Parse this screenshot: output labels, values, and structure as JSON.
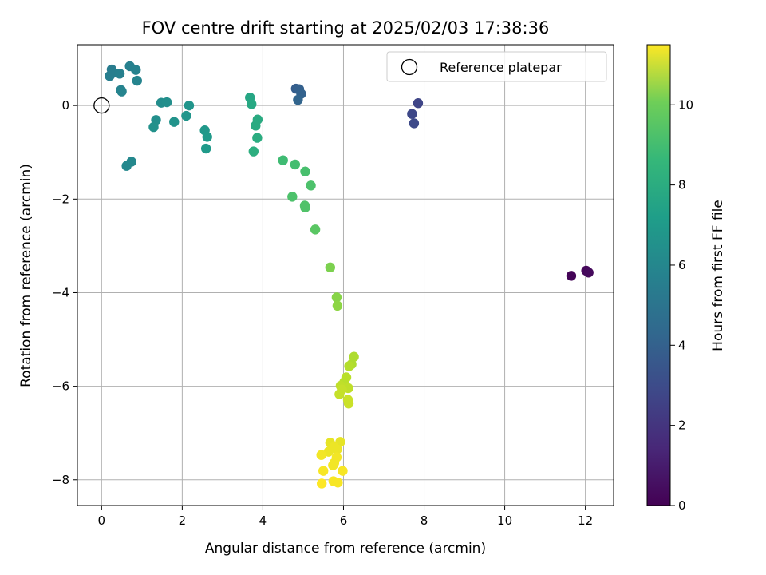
{
  "chart_data": {
    "type": "scatter",
    "title": "FOV centre drift starting at 2025/02/03 17:38:36",
    "xlabel": "Angular distance from reference (arcmin)",
    "ylabel": "Rotation from reference (arcmin)",
    "xlim": [
      -0.6,
      12.7
    ],
    "ylim": [
      -8.55,
      1.3
    ],
    "xticks": [
      0,
      2,
      4,
      6,
      8,
      10,
      12
    ],
    "yticks": [
      -8,
      -6,
      -4,
      -2,
      0
    ],
    "grid": true,
    "legend": {
      "position": "top-right",
      "entries": [
        "Reference platepar"
      ]
    },
    "reference_point": {
      "x": 0,
      "y": 0,
      "label": "Reference platepar"
    },
    "colorbar": {
      "label": "Hours from first FF file",
      "colormap": "viridis",
      "range": [
        0,
        11.5
      ],
      "ticks": [
        0,
        2,
        4,
        6,
        8,
        10
      ]
    },
    "points": [
      {
        "x": 11.65,
        "y": -3.64,
        "c": 0.1
      },
      {
        "x": 12.02,
        "y": -3.53,
        "c": 0.2
      },
      {
        "x": 12.08,
        "y": -3.57,
        "c": 0.3
      },
      {
        "x": 7.85,
        "y": 0.05,
        "c": 2.4
      },
      {
        "x": 7.7,
        "y": -0.18,
        "c": 2.5
      },
      {
        "x": 7.75,
        "y": -0.38,
        "c": 2.6
      },
      {
        "x": 4.82,
        "y": 0.36,
        "c": 3.4
      },
      {
        "x": 4.9,
        "y": 0.35,
        "c": 3.5
      },
      {
        "x": 4.95,
        "y": 0.25,
        "c": 3.6
      },
      {
        "x": 4.87,
        "y": 0.12,
        "c": 3.7
      },
      {
        "x": 0.25,
        "y": 0.77,
        "c": 4.8
      },
      {
        "x": 0.3,
        "y": 0.7,
        "c": 4.9
      },
      {
        "x": 0.2,
        "y": 0.63,
        "c": 4.9
      },
      {
        "x": 0.45,
        "y": 0.68,
        "c": 5.0
      },
      {
        "x": 0.7,
        "y": 0.84,
        "c": 5.0
      },
      {
        "x": 0.85,
        "y": 0.76,
        "c": 5.1
      },
      {
        "x": 0.48,
        "y": 0.33,
        "c": 5.1
      },
      {
        "x": 0.5,
        "y": 0.3,
        "c": 5.2
      },
      {
        "x": 0.88,
        "y": 0.53,
        "c": 5.2
      },
      {
        "x": 0.62,
        "y": -1.29,
        "c": 5.4
      },
      {
        "x": 0.74,
        "y": -1.2,
        "c": 5.4
      },
      {
        "x": 1.48,
        "y": 0.06,
        "c": 5.6
      },
      {
        "x": 1.62,
        "y": 0.07,
        "c": 5.7
      },
      {
        "x": 1.35,
        "y": -0.31,
        "c": 5.7
      },
      {
        "x": 1.29,
        "y": -0.46,
        "c": 5.8
      },
      {
        "x": 1.8,
        "y": -0.35,
        "c": 5.9
      },
      {
        "x": 2.17,
        "y": 0.0,
        "c": 6.0
      },
      {
        "x": 2.1,
        "y": -0.22,
        "c": 6.0
      },
      {
        "x": 2.56,
        "y": -0.53,
        "c": 6.1
      },
      {
        "x": 2.62,
        "y": -0.67,
        "c": 6.2
      },
      {
        "x": 2.59,
        "y": -0.92,
        "c": 6.2
      },
      {
        "x": 3.68,
        "y": 0.17,
        "c": 6.8
      },
      {
        "x": 3.72,
        "y": 0.03,
        "c": 6.9
      },
      {
        "x": 3.87,
        "y": -0.3,
        "c": 7.0
      },
      {
        "x": 3.82,
        "y": -0.43,
        "c": 7.0
      },
      {
        "x": 3.86,
        "y": -0.69,
        "c": 7.1
      },
      {
        "x": 3.77,
        "y": -0.98,
        "c": 7.2
      },
      {
        "x": 4.5,
        "y": -1.17,
        "c": 7.9
      },
      {
        "x": 4.8,
        "y": -1.26,
        "c": 8.0
      },
      {
        "x": 5.05,
        "y": -1.41,
        "c": 8.1
      },
      {
        "x": 5.19,
        "y": -1.71,
        "c": 8.2
      },
      {
        "x": 4.73,
        "y": -1.95,
        "c": 8.2
      },
      {
        "x": 5.04,
        "y": -2.14,
        "c": 8.3
      },
      {
        "x": 5.05,
        "y": -2.18,
        "c": 8.3
      },
      {
        "x": 5.3,
        "y": -2.65,
        "c": 8.5
      },
      {
        "x": 5.67,
        "y": -3.46,
        "c": 9.2
      },
      {
        "x": 5.83,
        "y": -4.1,
        "c": 9.4
      },
      {
        "x": 5.85,
        "y": -4.28,
        "c": 9.5
      },
      {
        "x": 6.26,
        "y": -5.37,
        "c": 10.1
      },
      {
        "x": 6.2,
        "y": -5.53,
        "c": 10.1
      },
      {
        "x": 6.14,
        "y": -5.57,
        "c": 10.2
      },
      {
        "x": 6.07,
        "y": -5.81,
        "c": 10.3
      },
      {
        "x": 6.02,
        "y": -5.91,
        "c": 10.3
      },
      {
        "x": 5.93,
        "y": -5.99,
        "c": 10.4
      },
      {
        "x": 6.12,
        "y": -6.04,
        "c": 10.4
      },
      {
        "x": 5.96,
        "y": -6.07,
        "c": 10.5
      },
      {
        "x": 5.9,
        "y": -6.17,
        "c": 10.5
      },
      {
        "x": 6.11,
        "y": -6.29,
        "c": 10.6
      },
      {
        "x": 6.13,
        "y": -6.37,
        "c": 10.6
      },
      {
        "x": 5.67,
        "y": -7.21,
        "c": 11.1
      },
      {
        "x": 5.92,
        "y": -7.19,
        "c": 11.1
      },
      {
        "x": 5.76,
        "y": -7.3,
        "c": 11.2
      },
      {
        "x": 5.84,
        "y": -7.35,
        "c": 11.2
      },
      {
        "x": 5.63,
        "y": -7.4,
        "c": 11.2
      },
      {
        "x": 5.45,
        "y": -7.47,
        "c": 11.3
      },
      {
        "x": 5.83,
        "y": -7.52,
        "c": 11.3
      },
      {
        "x": 5.77,
        "y": -7.64,
        "c": 11.3
      },
      {
        "x": 5.74,
        "y": -7.69,
        "c": 11.3
      },
      {
        "x": 5.5,
        "y": -7.81,
        "c": 11.4
      },
      {
        "x": 5.98,
        "y": -7.81,
        "c": 11.4
      },
      {
        "x": 5.75,
        "y": -8.03,
        "c": 11.4
      },
      {
        "x": 5.86,
        "y": -8.06,
        "c": 11.4
      },
      {
        "x": 5.46,
        "y": -8.08,
        "c": 11.5
      }
    ]
  }
}
